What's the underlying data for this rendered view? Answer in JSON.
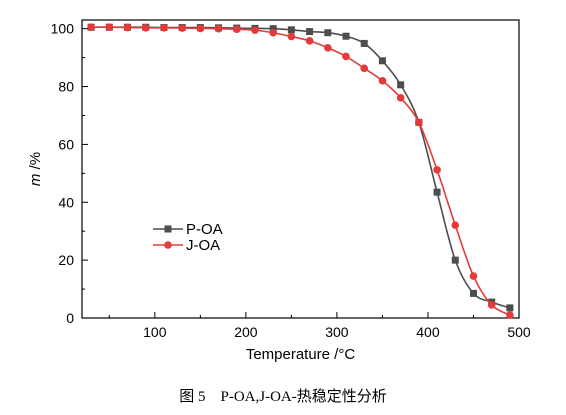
{
  "caption": "图 5　P-OA,J-OA-热稳定性分析",
  "chart_data": {
    "type": "line",
    "xlabel": "Temperature /°C",
    "ylabel_var": "m",
    "ylabel_unit": " /%",
    "xlim": [
      20,
      500
    ],
    "ylim": [
      0,
      103
    ],
    "xticks": [
      100,
      200,
      300,
      400,
      500
    ],
    "yticks": [
      0,
      20,
      40,
      60,
      80,
      100
    ],
    "grid": false,
    "legend_position": "lower-left",
    "series": [
      {
        "name": "P-OA",
        "color": "#4d4d4d",
        "marker": "square",
        "x": [
          30,
          50,
          70,
          90,
          110,
          130,
          150,
          170,
          190,
          210,
          230,
          250,
          270,
          290,
          310,
          330,
          350,
          370,
          390,
          410,
          430,
          450,
          470,
          490
        ],
        "y": [
          100.5,
          100.5,
          100.5,
          100.5,
          100.4,
          100.4,
          100.4,
          100.3,
          100.2,
          100.1,
          100.0,
          99.6,
          99.0,
          98.6,
          97.4,
          94.9,
          88.9,
          80.6,
          67.6,
          43.5,
          20.0,
          8.5,
          5.5,
          3.5
        ]
      },
      {
        "name": "J-OA",
        "color": "#e53a3a",
        "marker": "circle",
        "x": [
          30,
          50,
          70,
          90,
          110,
          130,
          150,
          170,
          190,
          210,
          230,
          250,
          270,
          290,
          310,
          330,
          350,
          370,
          390,
          410,
          430,
          450,
          470,
          490
        ],
        "y": [
          100.5,
          100.5,
          100.4,
          100.3,
          100.3,
          100.2,
          100.1,
          100.0,
          99.8,
          99.5,
          98.6,
          97.3,
          95.8,
          93.4,
          90.4,
          86.3,
          82.0,
          76.1,
          67.6,
          51.2,
          32.1,
          14.5,
          4.5,
          1.0
        ]
      }
    ]
  }
}
